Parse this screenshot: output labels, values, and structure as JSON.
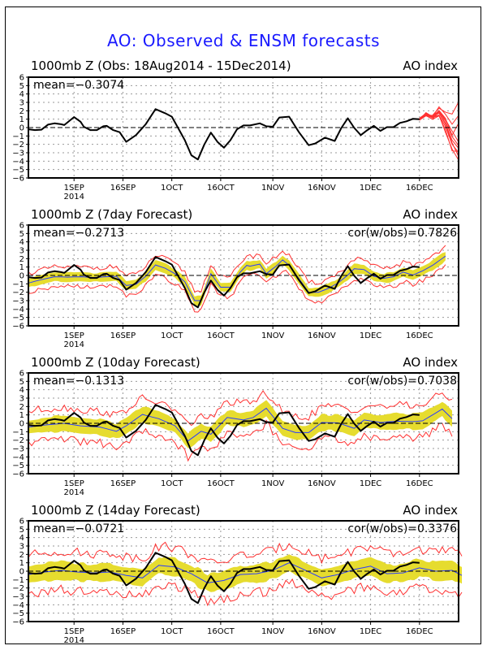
{
  "title": "AO: Observed & ENSM forecasts",
  "colors": {
    "title": "#1a1aff",
    "observed": "#000000",
    "ens_mean": "#2a3cff",
    "spread": "#e6dc2e",
    "minmax": "#ff3030",
    "members": "#ff3030"
  },
  "chart_data": {
    "type": "line",
    "x_start": "2014-08-18",
    "x_end": "2014-12-28",
    "ylim": [
      -6,
      6
    ],
    "yticks": [
      -6,
      -5,
      -4,
      -3,
      -2,
      -1,
      0,
      1,
      2,
      3,
      4,
      5,
      6
    ],
    "xticks": [
      {
        "label": "1SEP",
        "sub": "2014",
        "day": 14
      },
      {
        "label": "16SEP",
        "sub": "",
        "day": 29
      },
      {
        "label": "1OCT",
        "sub": "",
        "day": 44
      },
      {
        "label": "16OCT",
        "sub": "",
        "day": 59
      },
      {
        "label": "1NOV",
        "sub": "",
        "day": 75
      },
      {
        "label": "16NOV",
        "sub": "",
        "day": 90
      },
      {
        "label": "1DEC",
        "sub": "",
        "day": 105
      },
      {
        "label": "16DEC",
        "sub": "",
        "day": 120
      }
    ],
    "grid": true,
    "observed": {
      "name": "Observed AO",
      "days": [
        0,
        2,
        4,
        6,
        8,
        10,
        11,
        14,
        16,
        17,
        19,
        21,
        23,
        24,
        26,
        28,
        30,
        33,
        36,
        39,
        42,
        44,
        46,
        48,
        50,
        52,
        54,
        56,
        58,
        60,
        62,
        64,
        66,
        68,
        71,
        73,
        75,
        77,
        80,
        83,
        86,
        88,
        91,
        94,
        96,
        98,
        100,
        102,
        104,
        106,
        108,
        110,
        112,
        114,
        116,
        118,
        120
      ],
      "values": [
        -0.2,
        -0.3,
        -0.25,
        0.35,
        0.5,
        0.4,
        0.3,
        1.25,
        0.7,
        0.1,
        -0.3,
        -0.3,
        0.15,
        0.2,
        -0.3,
        -0.55,
        -1.7,
        -0.9,
        0.4,
        2.2,
        1.7,
        1.3,
        -0.1,
        -1.5,
        -3.3,
        -3.8,
        -2.0,
        -0.6,
        -1.7,
        -2.4,
        -1.5,
        -0.2,
        0.25,
        0.25,
        0.5,
        0.15,
        0.1,
        1.2,
        1.3,
        -0.55,
        -2.1,
        -1.9,
        -1.2,
        -1.6,
        -0.05,
        1.1,
        -0.05,
        -0.9,
        -0.3,
        0.2,
        -0.4,
        0.05,
        0.05,
        0.55,
        0.75,
        1.05,
        1.0
      ]
    },
    "panels": [
      {
        "id": "obs",
        "title": "1000mb Z (Obs: 18Aug2014 - 15Dec2014)",
        "index_label": "AO index",
        "mean_label": "mean=-0.3074",
        "cor_label": "",
        "ensemble_members": {
          "start_day": 120,
          "days": [
            120,
            122,
            124,
            126,
            128,
            130,
            132
          ],
          "members": [
            [
              1.0,
              1.6,
              1.3,
              1.8,
              0.5,
              -1.5,
              -2.5
            ],
            [
              1.0,
              1.5,
              1.4,
              2.0,
              1.0,
              -0.5,
              -1.8
            ],
            [
              1.0,
              1.6,
              1.2,
              1.5,
              0.0,
              -2.0,
              -3.0
            ],
            [
              1.0,
              1.5,
              1.5,
              2.2,
              1.8,
              1.5,
              3.0
            ],
            [
              1.0,
              1.7,
              1.3,
              1.6,
              -0.5,
              -2.5,
              -4.0
            ],
            [
              1.0,
              1.5,
              1.1,
              1.9,
              0.8,
              -1.0,
              -2.2
            ],
            [
              1.0,
              1.6,
              1.4,
              2.6,
              1.5,
              0.5,
              1.5
            ],
            [
              1.0,
              1.5,
              1.2,
              1.7,
              0.3,
              -1.8,
              -3.5
            ],
            [
              1.0,
              1.6,
              1.3,
              2.1,
              1.2,
              -0.8,
              0.5
            ],
            [
              1.0,
              1.5,
              1.0,
              1.4,
              -0.2,
              -2.8,
              -2.8
            ]
          ]
        }
      },
      {
        "id": "d7",
        "title": "1000mb Z (7day Forecast)",
        "index_label": "AO index",
        "mean_label": "mean=-0.2713",
        "cor_label": "cor(w/obs)=0.7826",
        "forecast": {
          "days": [
            0,
            4,
            8,
            12,
            16,
            20,
            24,
            27,
            30,
            33,
            36,
            39,
            42,
            45,
            48,
            51,
            53,
            56,
            59,
            62,
            65,
            67,
            68,
            71,
            73,
            76,
            78,
            80,
            83,
            86,
            89,
            92,
            95,
            98,
            100,
            103,
            106,
            109,
            112,
            115,
            118,
            121,
            124,
            128
          ],
          "mean": [
            -0.9,
            -0.5,
            -0.15,
            -0.2,
            -0.15,
            -0.25,
            -0.15,
            -0.1,
            -1.2,
            -1.05,
            -0.1,
            1.25,
            0.85,
            0.2,
            -0.75,
            -3.0,
            -3.0,
            0.2,
            -1.4,
            -1.4,
            0.4,
            1.2,
            1.1,
            1.35,
            0.2,
            1.1,
            1.85,
            1.2,
            -0.4,
            -2.0,
            -2.0,
            -1.55,
            -0.9,
            0.05,
            0.8,
            0.7,
            -0.1,
            -0.35,
            -0.15,
            0.4,
            0.05,
            0.55,
            1.2,
            2.3
          ],
          "spread": 0.55,
          "minmax": 1.15
        }
      },
      {
        "id": "d10",
        "title": "1000mb Z (10day Forecast)",
        "index_label": "AO index",
        "mean_label": "mean=-0.1313",
        "cor_label": "cor(w/obs)=0.7038",
        "forecast": {
          "days": [
            0,
            5,
            11,
            16,
            22,
            27,
            30,
            35,
            40,
            45,
            49,
            53,
            56,
            61,
            66,
            69,
            73,
            78,
            82,
            86,
            90,
            95,
            100,
            103,
            108,
            113,
            118,
            121,
            127,
            130
          ],
          "mean": [
            -0.45,
            -0.2,
            0.0,
            -0.3,
            -0.45,
            -0.95,
            -0.3,
            1.05,
            0.55,
            -0.3,
            -2.1,
            -0.95,
            -1.3,
            0.7,
            0.4,
            0.7,
            1.8,
            -0.6,
            -1.1,
            -1.1,
            0.1,
            0.05,
            -0.6,
            0.4,
            0.1,
            0.25,
            0.2,
            0.3,
            1.7,
            0.55
          ],
          "spread": 0.9,
          "minmax": 1.9
        }
      },
      {
        "id": "d14",
        "title": "1000mb Z (14day Forecast)",
        "index_label": "AO index",
        "mean_label": "mean=-0.0721",
        "cor_label": "cor(w/obs)=0.3376",
        "forecast": {
          "days": [
            0,
            5,
            10,
            15,
            20,
            25,
            30,
            35,
            40,
            45,
            50,
            55,
            60,
            65,
            70,
            75,
            80,
            85,
            90,
            95,
            100,
            105,
            110,
            115,
            120,
            125,
            130,
            133
          ],
          "mean": [
            -0.4,
            -0.1,
            0.1,
            -0.1,
            -0.2,
            -0.1,
            -0.5,
            -0.8,
            0.7,
            0.5,
            -0.3,
            -1.4,
            -1.1,
            -0.4,
            -0.3,
            0.1,
            1.0,
            0.1,
            -0.8,
            -0.4,
            0.2,
            0.6,
            -0.3,
            -0.2,
            0.4,
            0.0,
            0.1,
            -0.5
          ],
          "spread": 1.05,
          "minmax": 2.3
        }
      }
    ]
  }
}
